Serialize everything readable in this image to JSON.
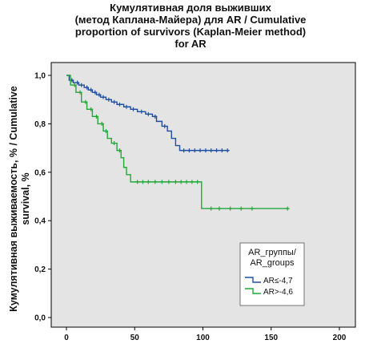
{
  "chart_data": {
    "type": "line",
    "title": [
      "Кумулятивная доля выживших",
      "(метод Каплана-Майера) для AR / Cumulative",
      "proportion of survivors (Kaplan-Meier method)",
      "for AR"
    ],
    "ylabel": [
      "Кумулятивная выживаемость, % / Cumulative",
      "survival, %"
    ],
    "xlabel": "",
    "xlim": [
      0,
      200
    ],
    "ylim": [
      0,
      1.0
    ],
    "x_ticks": [
      "0",
      "50",
      "100",
      "150",
      "200"
    ],
    "y_ticks": [
      "0,0",
      "0,2",
      "0,4",
      "0,6",
      "0,8",
      "1,0"
    ],
    "grid": false,
    "legend": {
      "title": [
        "AR_группы/",
        "AR_groups"
      ],
      "placement": "bottom-right"
    },
    "series": [
      {
        "name": "AR≤-4,7",
        "color": "#1f4fa0",
        "steps": [
          [
            0,
            1.0
          ],
          [
            2,
            0.98
          ],
          [
            5,
            0.97
          ],
          [
            9,
            0.96
          ],
          [
            13,
            0.95
          ],
          [
            16,
            0.94
          ],
          [
            19,
            0.93
          ],
          [
            22,
            0.92
          ],
          [
            25,
            0.91
          ],
          [
            29,
            0.9
          ],
          [
            33,
            0.89
          ],
          [
            37,
            0.88
          ],
          [
            42,
            0.87
          ],
          [
            47,
            0.86
          ],
          [
            52,
            0.85
          ],
          [
            58,
            0.84
          ],
          [
            63,
            0.83
          ],
          [
            66,
            0.81
          ],
          [
            70,
            0.79
          ],
          [
            74,
            0.77
          ],
          [
            77,
            0.74
          ],
          [
            80,
            0.71
          ],
          [
            83,
            0.69
          ],
          [
            119,
            0.69
          ]
        ],
        "censored": [
          [
            4,
            0.98
          ],
          [
            8,
            0.97
          ],
          [
            11,
            0.96
          ],
          [
            15,
            0.95
          ],
          [
            18,
            0.94
          ],
          [
            21,
            0.93
          ],
          [
            24,
            0.92
          ],
          [
            27,
            0.91
          ],
          [
            31,
            0.9
          ],
          [
            35,
            0.89
          ],
          [
            39,
            0.88
          ],
          [
            44,
            0.87
          ],
          [
            49,
            0.86
          ],
          [
            55,
            0.85
          ],
          [
            60,
            0.84
          ],
          [
            65,
            0.83
          ],
          [
            72,
            0.79
          ],
          [
            86,
            0.69
          ],
          [
            90,
            0.69
          ],
          [
            94,
            0.69
          ],
          [
            98,
            0.69
          ],
          [
            102,
            0.69
          ],
          [
            106,
            0.69
          ],
          [
            110,
            0.69
          ],
          [
            114,
            0.69
          ],
          [
            118,
            0.69
          ]
        ]
      },
      {
        "name": "AR>-4,6",
        "color": "#22a83a",
        "steps": [
          [
            0,
            1.0
          ],
          [
            3,
            0.96
          ],
          [
            7,
            0.93
          ],
          [
            11,
            0.89
          ],
          [
            15,
            0.86
          ],
          [
            19,
            0.83
          ],
          [
            23,
            0.8
          ],
          [
            27,
            0.77
          ],
          [
            30,
            0.74
          ],
          [
            33,
            0.72
          ],
          [
            37,
            0.69
          ],
          [
            40,
            0.66
          ],
          [
            42,
            0.62
          ],
          [
            44,
            0.59
          ],
          [
            47,
            0.56
          ],
          [
            98,
            0.56
          ],
          [
            99,
            0.45
          ],
          [
            163,
            0.45
          ]
        ],
        "censored": [
          [
            6,
            0.96
          ],
          [
            10,
            0.93
          ],
          [
            14,
            0.89
          ],
          [
            18,
            0.86
          ],
          [
            22,
            0.83
          ],
          [
            26,
            0.8
          ],
          [
            29,
            0.77
          ],
          [
            35,
            0.72
          ],
          [
            39,
            0.69
          ],
          [
            52,
            0.56
          ],
          [
            56,
            0.56
          ],
          [
            60,
            0.56
          ],
          [
            65,
            0.56
          ],
          [
            70,
            0.56
          ],
          [
            75,
            0.56
          ],
          [
            80,
            0.56
          ],
          [
            84,
            0.56
          ],
          [
            88,
            0.56
          ],
          [
            92,
            0.56
          ],
          [
            96,
            0.56
          ],
          [
            106,
            0.45
          ],
          [
            112,
            0.45
          ],
          [
            120,
            0.45
          ],
          [
            128,
            0.45
          ],
          [
            136,
            0.45
          ],
          [
            162,
            0.45
          ]
        ]
      }
    ]
  }
}
